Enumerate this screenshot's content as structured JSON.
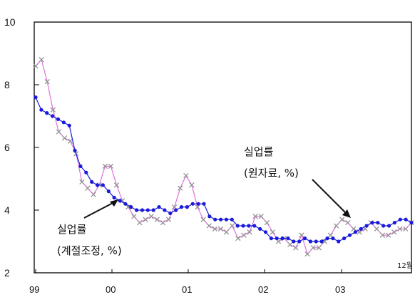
{
  "chart_data": {
    "type": "line",
    "ylim": [
      2,
      10
    ],
    "yticks": [
      "2",
      "4",
      "6",
      "8",
      "10"
    ],
    "x_ticks": [
      "99",
      "00",
      "01",
      "02",
      "03"
    ],
    "x_end_label": "12월",
    "annotations": {
      "sa": {
        "line1": "실업률",
        "line2": "(계절조정, %)"
      },
      "raw": {
        "line1": "실업률",
        "line2": "(원자료, %)"
      }
    },
    "colors": {
      "sa": "#1a1adb",
      "raw_line": "#e070e0",
      "raw_marker": "#909090"
    },
    "series": [
      {
        "key": "sa",
        "values": [
          7.6,
          7.2,
          7.1,
          7.0,
          6.9,
          6.8,
          6.7,
          5.9,
          5.4,
          5.2,
          4.9,
          4.8,
          4.8,
          4.6,
          4.4,
          4.3,
          4.2,
          4.1,
          4.0,
          4.0,
          4.0,
          4.0,
          4.1,
          4.0,
          3.9,
          4.0,
          4.1,
          4.1,
          4.2,
          4.2,
          4.2,
          3.8,
          3.7,
          3.7,
          3.7,
          3.7,
          3.5,
          3.5,
          3.5,
          3.5,
          3.4,
          3.3,
          3.1,
          3.1,
          3.1,
          3.1,
          3.0,
          3.0,
          3.1,
          3.0,
          3.0,
          3.0,
          3.1,
          3.1,
          3.0,
          3.1,
          3.2,
          3.3,
          3.4,
          3.5,
          3.6,
          3.6,
          3.5,
          3.5,
          3.6,
          3.7,
          3.7,
          3.6
        ]
      },
      {
        "key": "raw",
        "values": [
          8.6,
          8.8,
          8.1,
          7.2,
          6.5,
          6.3,
          6.2,
          5.8,
          4.9,
          4.7,
          4.5,
          4.8,
          5.4,
          5.4,
          4.8,
          4.3,
          4.1,
          3.8,
          3.6,
          3.7,
          3.8,
          3.7,
          3.6,
          3.7,
          4.1,
          4.7,
          5.1,
          4.8,
          4.1,
          3.7,
          3.5,
          3.4,
          3.4,
          3.3,
          3.5,
          3.1,
          3.2,
          3.3,
          3.8,
          3.8,
          3.6,
          3.3,
          3.0,
          3.1,
          2.9,
          2.8,
          3.2,
          2.6,
          2.8,
          2.8,
          3.0,
          3.2,
          3.5,
          3.7,
          3.6,
          3.4,
          3.3,
          3.4,
          3.6,
          3.4,
          3.2,
          3.2,
          3.3,
          3.4,
          3.4,
          3.6
        ]
      }
    ]
  }
}
